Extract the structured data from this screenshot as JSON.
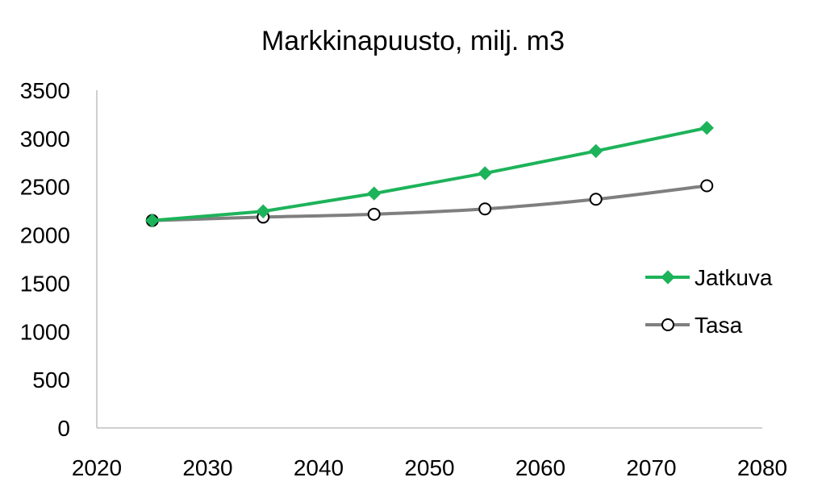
{
  "chart_data": {
    "type": "line",
    "title": "Markkinapuusto, milj. m3",
    "xlabel": "",
    "ylabel": "",
    "xlim": [
      2020,
      2080
    ],
    "ylim": [
      0,
      3500
    ],
    "x_ticks": [
      "2020",
      "2030",
      "2040",
      "2050",
      "2060",
      "2070",
      "2080"
    ],
    "y_ticks": [
      "0",
      "500",
      "1000",
      "1500",
      "2000",
      "2500",
      "3000",
      "3500"
    ],
    "grid": false,
    "legend_position": "right",
    "x": [
      2025,
      2035,
      2045,
      2055,
      2065,
      2075
    ],
    "series": [
      {
        "name": "Jatkuva",
        "values": [
          2150,
          2245,
          2430,
          2640,
          2870,
          3110
        ],
        "color": "#1db35a",
        "marker": "diamond"
      },
      {
        "name": "Tasa",
        "values": [
          2150,
          2185,
          2215,
          2270,
          2370,
          2510
        ],
        "color": "#7f7f7f",
        "marker": "open-circle"
      }
    ]
  }
}
